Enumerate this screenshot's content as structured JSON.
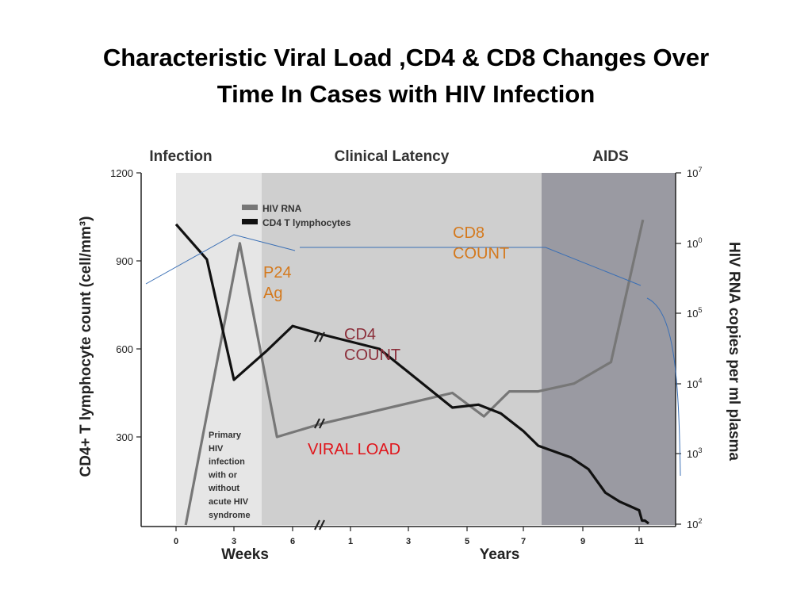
{
  "slide": {
    "title_line1": "Characteristic Viral Load ,CD4 & CD8 Changes Over",
    "title_line2": "Time In Cases with HIV Infection"
  },
  "chart_data": {
    "type": "line",
    "phases": [
      "Infection",
      "Clinical Latency",
      "AIDS"
    ],
    "x_axis": {
      "weeks_label": "Weeks",
      "years_label": "Years",
      "weeks_ticks": [
        "0",
        "3",
        "6"
      ],
      "years_ticks": [
        "1",
        "3",
        "5",
        "7",
        "9",
        "11"
      ]
    },
    "y_left": {
      "label": "CD4+ T lymphocyte count (cell/mm³)",
      "ticks": [
        1200,
        900,
        600,
        300
      ],
      "range": [
        0,
        1200
      ]
    },
    "y_right": {
      "label": "HIV RNA copies per ml plasma",
      "ticks": [
        {
          "base": "10",
          "exp": "7"
        },
        {
          "base": "10",
          "exp": "0"
        },
        {
          "base": "10",
          "exp": "5"
        },
        {
          "base": "10",
          "exp": "4"
        },
        {
          "base": "10",
          "exp": "3"
        },
        {
          "base": "10",
          "exp": "2"
        }
      ]
    },
    "legend": [
      "HIV RNA",
      "CD4 T lymphocytes"
    ],
    "series": [
      {
        "name": "HIV RNA",
        "color": "#777777",
        "points": [
          {
            "t": 0.5,
            "cd4_scale": 0
          },
          {
            "t": 3.3,
            "cd4_scale": 960
          },
          {
            "t": 5.2,
            "cd4_scale": 300
          },
          {
            "t": 7.9,
            "cd4_scale": 345
          },
          {
            "t": 12.5,
            "cd4_scale": 450
          },
          {
            "t": 13.6,
            "cd4_scale": 370
          },
          {
            "t": 14.5,
            "cd4_scale": 455
          },
          {
            "t": 15.5,
            "cd4_scale": 455
          },
          {
            "t": 16.7,
            "cd4_scale": 482
          },
          {
            "t": 18.0,
            "cd4_scale": 555
          },
          {
            "t": 19.8,
            "cd4_scale": 1040
          }
        ]
      },
      {
        "name": "CD4 T lymphocytes",
        "color": "#111111",
        "points": [
          {
            "t": 0,
            "cd4_scale": 1025
          },
          {
            "t": 1.6,
            "cd4_scale": 905
          },
          {
            "t": 3.0,
            "cd4_scale": 495
          },
          {
            "t": 4.7,
            "cd4_scale": 595
          },
          {
            "t": 6.0,
            "cd4_scale": 678
          },
          {
            "t": 7.9,
            "cd4_scale": 650
          },
          {
            "t": 10.0,
            "cd4_scale": 600
          },
          {
            "t": 12.5,
            "cd4_scale": 400
          },
          {
            "t": 13.4,
            "cd4_scale": 410
          },
          {
            "t": 14.2,
            "cd4_scale": 380
          },
          {
            "t": 15.0,
            "cd4_scale": 320
          },
          {
            "t": 15.5,
            "cd4_scale": 270
          },
          {
            "t": 16.6,
            "cd4_scale": 230
          },
          {
            "t": 17.2,
            "cd4_scale": 190
          },
          {
            "t": 17.8,
            "cd4_scale": 110
          },
          {
            "t": 18.3,
            "cd4_scale": 80
          },
          {
            "t": 19.0,
            "cd4_scale": 50
          },
          {
            "t": 19.6,
            "cd4_scale": 15
          },
          {
            "t": 20.2,
            "cd4_scale": 15
          },
          {
            "t": 21.0,
            "cd4_scale": 5
          }
        ]
      }
    ],
    "annotations": {
      "primary_note": [
        "Primary",
        "HIV",
        "infection",
        "with or",
        "without",
        "acute HIV",
        "syndrome"
      ],
      "p24": [
        "P24",
        "Ag"
      ],
      "cd8": [
        "CD8",
        "COUNT"
      ],
      "cd4": [
        "CD4",
        "COUNT"
      ],
      "viral": "VIRAL LOAD"
    },
    "colors": {
      "infection_band": "#e6e6e6",
      "latency_band": "#cfcfcf",
      "aids_band": "#9a9aa2",
      "p24": "#d4791d",
      "cd8": "#d4791d",
      "cd4": "#8b2e3a",
      "viral": "#e0141a",
      "cd8_line": "#3a6fb5"
    }
  }
}
